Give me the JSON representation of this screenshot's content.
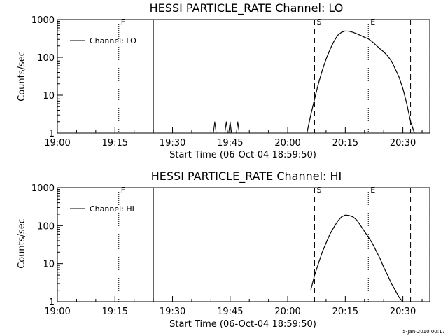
{
  "page": {
    "timestamp": "5-Jan-2010 00:17"
  },
  "chart_data": [
    {
      "type": "line",
      "title": "HESSI PARTICLE_RATE Channel: LO",
      "xlabel": "Start Time (06-Oct-04 18:59:50)",
      "ylabel": "Counts/sec",
      "legend": "Channel: LO",
      "legend_placement": "top-left",
      "ylog": true,
      "xlim": [
        "19:00",
        "20:37"
      ],
      "ylim": [
        1,
        1000
      ],
      "x_ticks": [
        "19:00",
        "19:15",
        "19:30",
        "19:45",
        "20:00",
        "20:15",
        "20:30"
      ],
      "y_ticks": [
        "1",
        "10",
        "100",
        "1000"
      ],
      "markers": [
        {
          "label": "F",
          "time": "19:16",
          "style": "dotted"
        },
        {
          "label": "",
          "time": "19:25",
          "style": "solid"
        },
        {
          "label": "S",
          "time": "20:07",
          "style": "dashed"
        },
        {
          "label": "E",
          "time": "20:21",
          "style": "dotted"
        },
        {
          "label": "",
          "time": "20:32",
          "style": "dashed"
        },
        {
          "label": "",
          "time": "20:36",
          "style": "dotted"
        }
      ],
      "spikes": [
        {
          "time": "19:41",
          "value": 2
        },
        {
          "time": "19:44",
          "value": 2
        },
        {
          "time": "19:45",
          "value": 2
        },
        {
          "time": "19:47",
          "value": 2
        }
      ],
      "series": [
        {
          "x": [
            "20:05",
            "20:06",
            "20:07",
            "20:08",
            "20:09",
            "20:10",
            "20:11",
            "20:12",
            "20:13",
            "20:14",
            "20:15",
            "20:16",
            "20:17",
            "20:18",
            "20:19",
            "20:20",
            "20:21",
            "20:22",
            "20:23",
            "20:24",
            "20:25",
            "20:26",
            "20:27",
            "20:28",
            "20:29",
            "20:30",
            "20:31",
            "20:32",
            "20:33"
          ],
          "y": [
            1,
            3,
            8,
            20,
            45,
            90,
            160,
            260,
            380,
            460,
            500,
            490,
            460,
            420,
            380,
            340,
            310,
            260,
            210,
            170,
            140,
            110,
            80,
            50,
            30,
            15,
            6,
            2,
            1
          ]
        }
      ]
    },
    {
      "type": "line",
      "title": "HESSI PARTICLE_RATE Channel: HI",
      "xlabel": "Start Time (06-Oct-04 18:59:50)",
      "ylabel": "Counts/sec",
      "legend": "Channel: HI",
      "legend_placement": "top-left",
      "ylog": true,
      "xlim": [
        "19:00",
        "20:37"
      ],
      "ylim": [
        1,
        1000
      ],
      "x_ticks": [
        "19:00",
        "19:15",
        "19:30",
        "19:45",
        "20:00",
        "20:15",
        "20:30"
      ],
      "y_ticks": [
        "1",
        "10",
        "100",
        "1000"
      ],
      "markers": [
        {
          "label": "F",
          "time": "19:16",
          "style": "dotted"
        },
        {
          "label": "",
          "time": "19:25",
          "style": "solid"
        },
        {
          "label": "S",
          "time": "20:07",
          "style": "dashed"
        },
        {
          "label": "E",
          "time": "20:21",
          "style": "dotted"
        },
        {
          "label": "",
          "time": "20:32",
          "style": "dashed"
        },
        {
          "label": "",
          "time": "20:36",
          "style": "dotted"
        }
      ],
      "spikes": [],
      "series": [
        {
          "x": [
            "20:06",
            "20:07",
            "20:08",
            "20:09",
            "20:10",
            "20:11",
            "20:12",
            "20:13",
            "20:14",
            "20:15",
            "20:16",
            "20:17",
            "20:18",
            "20:19",
            "20:20",
            "20:21",
            "20:22",
            "20:23",
            "20:24",
            "20:25",
            "20:26",
            "20:27",
            "20:28",
            "20:29",
            "20:30"
          ],
          "y": [
            2,
            5,
            10,
            20,
            35,
            60,
            90,
            130,
            170,
            190,
            185,
            170,
            140,
            100,
            70,
            50,
            35,
            22,
            14,
            8,
            5,
            3,
            2,
            1.3,
            1
          ]
        }
      ]
    }
  ]
}
